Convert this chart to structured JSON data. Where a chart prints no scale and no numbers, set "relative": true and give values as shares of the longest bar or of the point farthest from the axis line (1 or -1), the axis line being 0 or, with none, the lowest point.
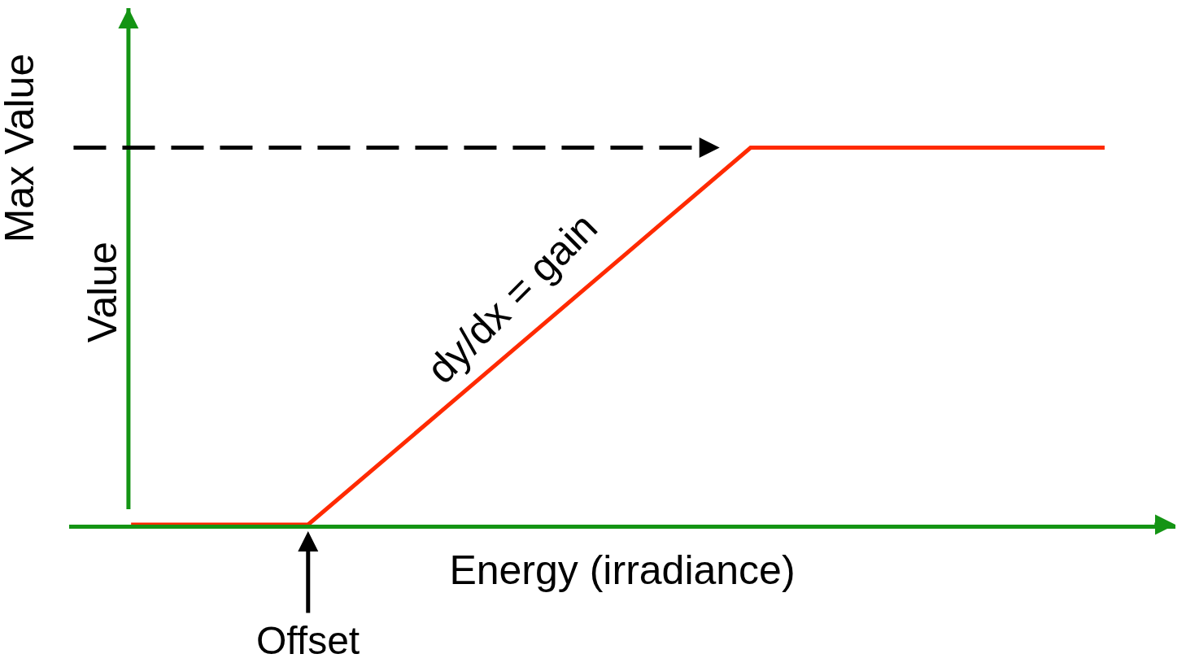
{
  "chart_data": {
    "type": "line",
    "relative": true,
    "xlabel": "Energy (irradiance)",
    "ylabel": "Value",
    "categories": [
      null,
      null,
      null,
      null,
      null,
      null,
      null,
      null,
      null,
      null,
      null,
      null
    ],
    "series": [
      {
        "color": "#ff2a00",
        "values": [
          0,
          0,
          0,
          0.2,
          0.4,
          0.6,
          0.8,
          1,
          1,
          1,
          1,
          1
        ]
      }
    ],
    "ref_lines": [
      {
        "axis": "y",
        "value": 1,
        "label": "Max Value",
        "color": "#000000",
        "line_style": "dashed"
      }
    ],
    "annotations": [
      "Offset",
      "dy/dx = gain"
    ],
    "marker": "none",
    "line_style": "solid"
  }
}
